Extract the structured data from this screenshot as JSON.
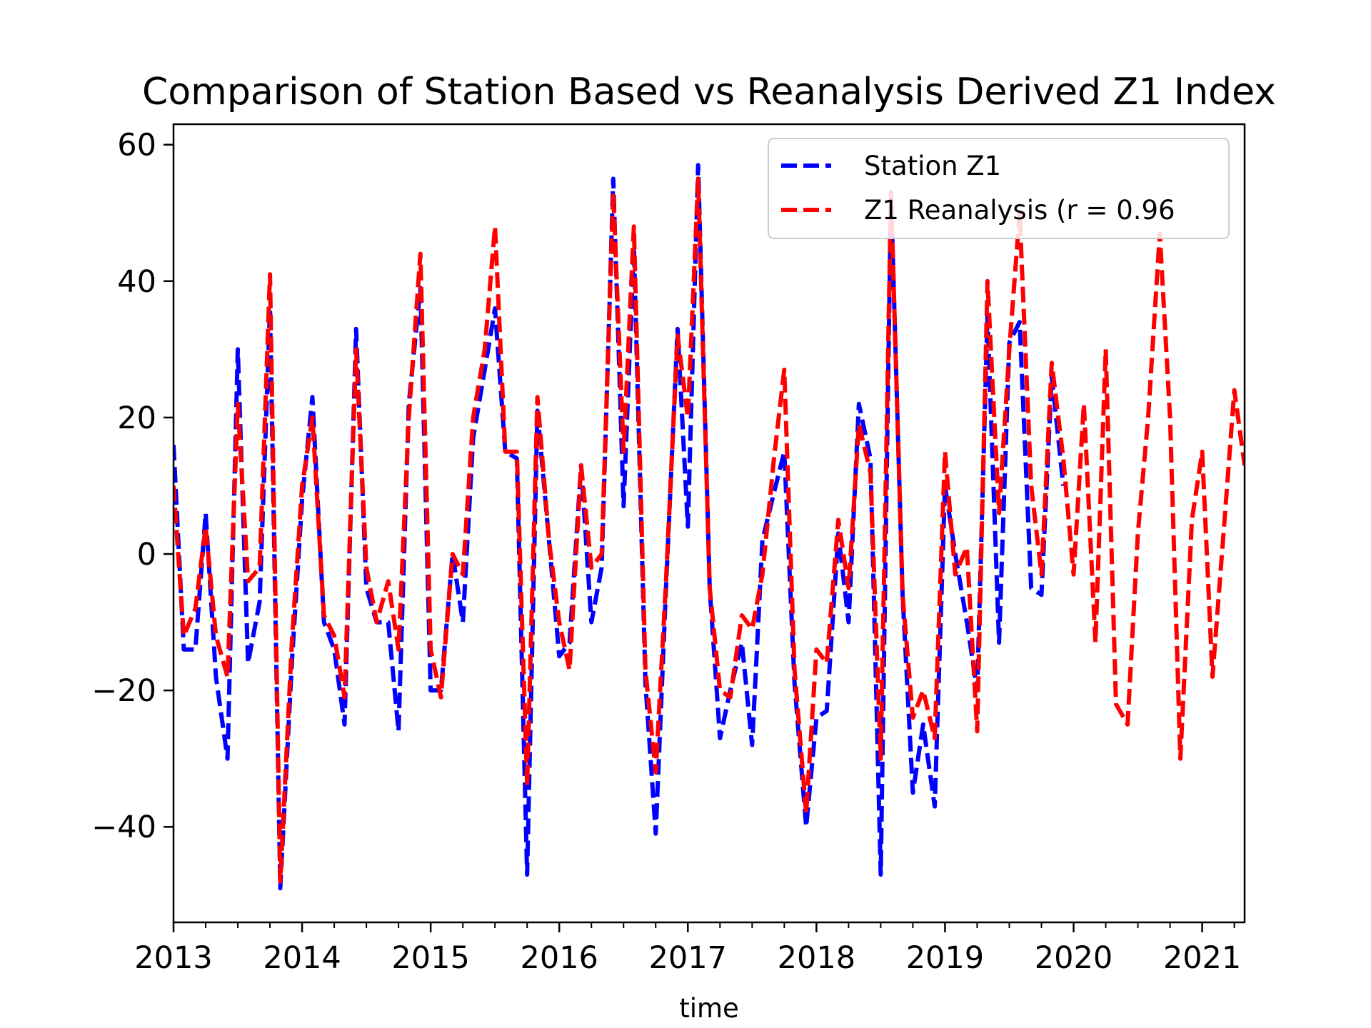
{
  "chart_data": {
    "type": "line",
    "title": "Comparison of Station Based vs Reanalysis Derived Z1 Index",
    "xlabel": "time",
    "ylabel": "",
    "xlim": [
      2013.0,
      2021.33
    ],
    "ylim": [
      -54,
      63
    ],
    "x_ticks": [
      2013,
      2014,
      2015,
      2016,
      2017,
      2018,
      2019,
      2020,
      2021
    ],
    "x_tick_labels": [
      "2013",
      "2014",
      "2015",
      "2016",
      "2017",
      "2018",
      "2019",
      "2020",
      "2021"
    ],
    "y_ticks": [
      -40,
      -20,
      0,
      20,
      40,
      60
    ],
    "y_tick_labels": [
      "−40",
      "−20",
      "0",
      "20",
      "40",
      "60"
    ],
    "grid": false,
    "legend_position": "upper right",
    "series": [
      {
        "name": "Station Z1",
        "color": "#0000ff",
        "style": "dashed",
        "x": [
          2013.0,
          2013.08,
          2013.17,
          2013.25,
          2013.33,
          2013.42,
          2013.5,
          2013.58,
          2013.67,
          2013.75,
          2013.83,
          2013.92,
          2014.0,
          2014.08,
          2014.17,
          2014.25,
          2014.33,
          2014.42,
          2014.5,
          2014.58,
          2014.67,
          2014.75,
          2014.83,
          2014.92,
          2015.0,
          2015.08,
          2015.17,
          2015.25,
          2015.33,
          2015.42,
          2015.5,
          2015.58,
          2015.67,
          2015.75,
          2015.83,
          2015.92,
          2016.0,
          2016.08,
          2016.17,
          2016.25,
          2016.33,
          2016.42,
          2016.5,
          2016.58,
          2016.67,
          2016.75,
          2016.83,
          2016.92,
          2017.0,
          2017.08,
          2017.17,
          2017.25,
          2017.33,
          2017.42,
          2017.5,
          2017.58,
          2017.67,
          2017.75,
          2017.83,
          2017.92,
          2018.0,
          2018.08,
          2018.17,
          2018.25,
          2018.33,
          2018.42,
          2018.5,
          2018.58,
          2018.67,
          2018.75,
          2018.83,
          2018.92,
          2019.0,
          2019.08,
          2019.17,
          2019.25,
          2019.33,
          2019.42,
          2019.5,
          2019.58,
          2019.67,
          2019.75,
          2019.83,
          2019.92
        ],
        "y": [
          16,
          -14,
          -14,
          6,
          -18,
          -30,
          30,
          -16,
          -7,
          36,
          -49,
          -16,
          8,
          23,
          -10,
          -14,
          -25,
          33,
          -5,
          -10,
          -10,
          -26,
          22,
          39,
          -20,
          -20,
          0,
          -10,
          17,
          27,
          36,
          15,
          14,
          -47,
          21,
          2,
          -15,
          -13,
          13,
          -10,
          -2,
          55,
          7,
          45,
          -19,
          -41,
          -5,
          33,
          4,
          57,
          -5,
          -27,
          -20,
          -13,
          -28,
          2,
          9,
          15,
          -19,
          -40,
          -24,
          -23,
          3,
          -10,
          22,
          14,
          -47,
          53,
          -6,
          -35,
          -25,
          -37,
          10,
          0,
          -10,
          -20,
          35,
          -13,
          31,
          34,
          -5,
          -6,
          26,
          10
        ]
      },
      {
        "name": "Z1 Reanalysis (r = 0.96",
        "color": "#ff0000",
        "style": "dashed",
        "x": [
          2013.0,
          2013.08,
          2013.17,
          2013.25,
          2013.33,
          2013.42,
          2013.5,
          2013.58,
          2013.67,
          2013.75,
          2013.83,
          2013.92,
          2014.0,
          2014.08,
          2014.17,
          2014.25,
          2014.33,
          2014.42,
          2014.5,
          2014.58,
          2014.67,
          2014.75,
          2014.83,
          2014.92,
          2015.0,
          2015.08,
          2015.17,
          2015.25,
          2015.33,
          2015.42,
          2015.5,
          2015.58,
          2015.67,
          2015.75,
          2015.83,
          2015.92,
          2016.0,
          2016.08,
          2016.17,
          2016.25,
          2016.33,
          2016.42,
          2016.5,
          2016.58,
          2016.67,
          2016.75,
          2016.83,
          2016.92,
          2017.0,
          2017.08,
          2017.17,
          2017.25,
          2017.33,
          2017.42,
          2017.5,
          2017.58,
          2017.67,
          2017.75,
          2017.83,
          2017.92,
          2018.0,
          2018.08,
          2018.17,
          2018.25,
          2018.33,
          2018.42,
          2018.5,
          2018.58,
          2018.67,
          2018.75,
          2018.83,
          2018.92,
          2019.0,
          2019.08,
          2019.17,
          2019.25,
          2019.33,
          2019.42,
          2019.5,
          2019.58,
          2019.67,
          2019.75,
          2019.83,
          2019.92,
          2020.0,
          2020.08,
          2020.17,
          2020.25,
          2020.33,
          2020.42,
          2020.5,
          2020.58,
          2020.67,
          2020.75,
          2020.83,
          2020.92,
          2021.0,
          2021.08,
          2021.17,
          2021.25,
          2021.33
        ],
        "y": [
          10,
          -12,
          -8,
          4,
          -12,
          -18,
          22,
          -4,
          -2,
          41,
          -48,
          -13,
          10,
          20,
          -9,
          -12,
          -21,
          30,
          -2,
          -10,
          -4,
          -14,
          20,
          44,
          -14,
          -21,
          0,
          -3,
          20,
          30,
          48,
          15,
          15,
          -34,
          23,
          2,
          -10,
          -17,
          13,
          -2,
          0,
          53,
          15,
          48,
          -17,
          -32,
          -4,
          32,
          20,
          55,
          -5,
          -20,
          -21,
          -9,
          -11,
          -3,
          14,
          27,
          -17,
          -38,
          -14,
          -16,
          5,
          -5,
          19,
          12,
          -30,
          53,
          -6,
          -24,
          -20,
          -27,
          15,
          -3,
          1,
          -26,
          40,
          6,
          30,
          50,
          10,
          -3,
          28,
          14,
          -3,
          22,
          -13,
          30,
          -22,
          -25,
          3,
          20,
          47,
          20,
          -30,
          5,
          15,
          -18,
          4,
          24,
          13
        ]
      }
    ]
  }
}
